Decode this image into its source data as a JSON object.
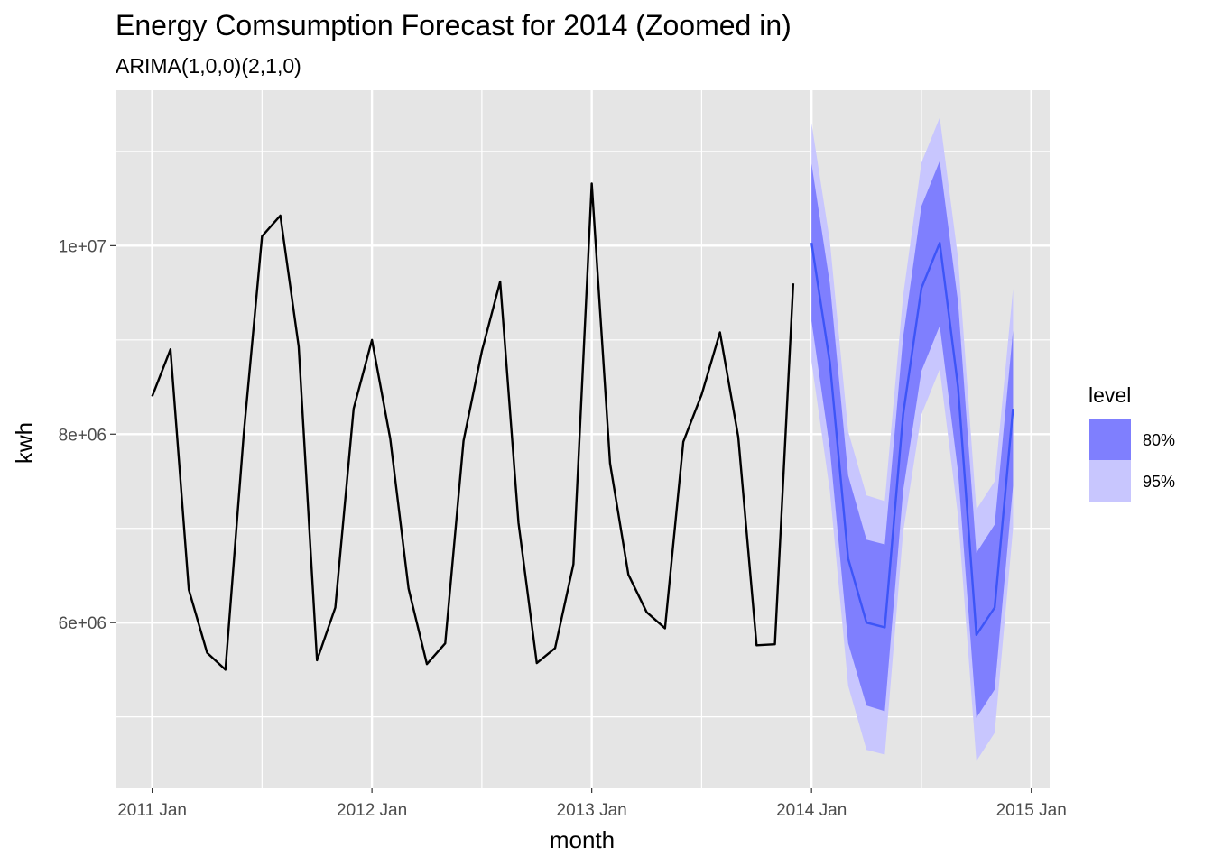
{
  "chart_data": {
    "type": "line",
    "title": "Energy Comsumption Forecast for 2014 (Zoomed in)",
    "subtitle": "ARIMA(1,0,0)(2,1,0)",
    "xlabel": "month",
    "ylabel": "kwh",
    "x_ticks": [
      "2011 Jan",
      "2012 Jan",
      "2013 Jan",
      "2014 Jan",
      "2015 Jan"
    ],
    "y_ticks": [
      "6e+06",
      "8e+06",
      "1e+07"
    ],
    "y_tick_values": [
      6000000,
      8000000,
      10000000
    ],
    "xlim": [
      "2010 Nov",
      "2015 Feb"
    ],
    "ylim": [
      4250000,
      11650000
    ],
    "grid": true,
    "legend_position": "right",
    "legend": {
      "title": "level",
      "entries": [
        {
          "label": "80%",
          "color": "#7f7ffe"
        },
        {
          "label": "95%",
          "color": "#c8c6fe"
        }
      ]
    },
    "colors": {
      "panel": "#e5e5e5",
      "grid": "#ffffff",
      "history_line": "#000000",
      "forecast_line": "#3d55f7",
      "band80": "#7f7ffe",
      "band95": "#c8c6fe"
    },
    "history": {
      "x": [
        "2011 Jan",
        "2011 Feb",
        "2011 Mar",
        "2011 Apr",
        "2011 May",
        "2011 Jun",
        "2011 Jul",
        "2011 Aug",
        "2011 Sep",
        "2011 Oct",
        "2011 Nov",
        "2011 Dec",
        "2012 Jan",
        "2012 Feb",
        "2012 Mar",
        "2012 Apr",
        "2012 May",
        "2012 Jun",
        "2012 Jul",
        "2012 Aug",
        "2012 Sep",
        "2012 Oct",
        "2012 Nov",
        "2012 Dec",
        "2013 Jan",
        "2013 Feb",
        "2013 Mar",
        "2013 Apr",
        "2013 May",
        "2013 Jun",
        "2013 Jul",
        "2013 Aug",
        "2013 Sep",
        "2013 Oct",
        "2013 Nov",
        "2013 Dec"
      ],
      "values": [
        8400000,
        8900000,
        6350000,
        5680000,
        5500000,
        8000000,
        10100000,
        10320000,
        8930000,
        5600000,
        6160000,
        8270000,
        9000000,
        7950000,
        6360000,
        5560000,
        5780000,
        7930000,
        8880000,
        9620000,
        7060000,
        5570000,
        5730000,
        6620000,
        10660000,
        7690000,
        6510000,
        6110000,
        5940000,
        7920000,
        8420000,
        9080000,
        7970000,
        5760000,
        5770000,
        9600000
      ]
    },
    "forecast": {
      "x": [
        "2014 Jan",
        "2014 Feb",
        "2014 Mar",
        "2014 Apr",
        "2014 May",
        "2014 Jun",
        "2014 Jul",
        "2014 Aug",
        "2014 Sep",
        "2014 Oct",
        "2014 Nov",
        "2014 Dec"
      ],
      "mean": [
        10030000,
        8760000,
        6680000,
        6000000,
        5950000,
        8210000,
        9550000,
        10030000,
        8500000,
        5870000,
        6160000,
        8270000
      ],
      "lo80": [
        9200000,
        7850000,
        5780000,
        5120000,
        5060000,
        7400000,
        8670000,
        9150000,
        7600000,
        4990000,
        5290000,
        7450000
      ],
      "hi80": [
        10870000,
        9600000,
        7560000,
        6880000,
        6830000,
        9030000,
        10420000,
        10900000,
        9400000,
        6740000,
        7040000,
        9100000
      ],
      "lo95": [
        8770000,
        7400000,
        5330000,
        4650000,
        4600000,
        6960000,
        8210000,
        8690000,
        7130000,
        4530000,
        4830000,
        7000000
      ],
      "hi95": [
        11300000,
        10050000,
        8030000,
        7350000,
        7290000,
        9470000,
        10880000,
        11360000,
        9870000,
        7200000,
        7500000,
        9540000
      ]
    }
  }
}
